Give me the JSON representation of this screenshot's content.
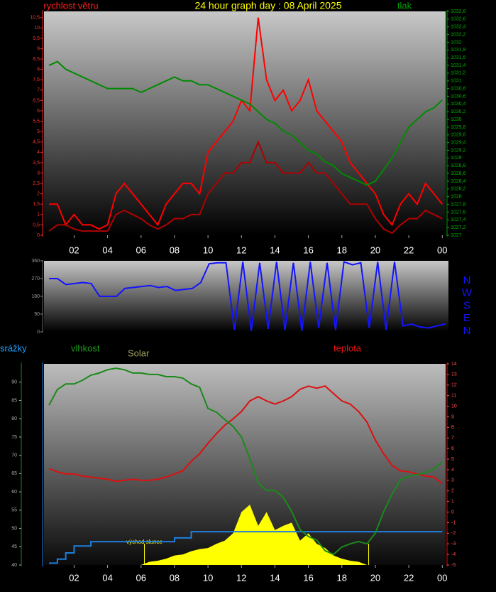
{
  "chart_data": [
    {
      "type": "line",
      "title": "24 hour graph day : 08 April 2025",
      "ylabel": "rychlost větru",
      "y2label": "tlak",
      "x": [
        0.5,
        1,
        1.5,
        2,
        2.5,
        3,
        3.5,
        4,
        4.5,
        5,
        5.5,
        6,
        6.5,
        7,
        7.5,
        8,
        8.5,
        9,
        9.5,
        10,
        10.5,
        11,
        11.5,
        12,
        12.5,
        13,
        13.5,
        14,
        14.5,
        15,
        15.5,
        16,
        16.5,
        17,
        17.5,
        18,
        18.5,
        19,
        19.5,
        20,
        20.5,
        21,
        21.5,
        22,
        22.5,
        23,
        23.5,
        24
      ],
      "xlim": [
        0.2,
        24.2
      ],
      "xticks": [
        {
          "value": 2,
          "label": "02"
        },
        {
          "value": 4,
          "label": "04"
        },
        {
          "value": 6,
          "label": "06"
        },
        {
          "value": 8,
          "label": "08"
        },
        10,
        12,
        14,
        16,
        18,
        20,
        22,
        {
          "value": 24,
          "label": "00"
        }
      ],
      "ylim": [
        0,
        10.8
      ],
      "yticks": [
        0,
        {
          "value": 0.5,
          "label": "0,5"
        },
        1,
        {
          "value": 1.5,
          "label": "1,5"
        },
        2,
        {
          "value": 2.5,
          "label": "2,5"
        },
        3,
        {
          "value": 3.5,
          "label": "3,5"
        },
        4,
        {
          "value": 4.5,
          "label": "4,5"
        },
        5,
        {
          "value": 5.5,
          "label": "5,5"
        },
        6,
        {
          "value": 6.5,
          "label": "6,5"
        },
        7,
        {
          "value": 7.5,
          "label": "7,5"
        },
        8,
        {
          "value": 8.5,
          "label": "8,5"
        },
        9,
        {
          "value": 9.5,
          "label": "9,5"
        },
        10,
        {
          "value": 10.5,
          "label": "10,5"
        }
      ],
      "y2lim": [
        1027,
        1032.8
      ],
      "y2ticks": [
        1027,
        {
          "value": 1027.2,
          "label": "1027,2"
        },
        {
          "value": 1027.4,
          "label": "1027,4"
        },
        {
          "value": 1027.6,
          "label": "1027,6"
        },
        {
          "value": 1027.8,
          "label": "1027,8"
        },
        1028,
        {
          "value": 1028.2,
          "label": "1028,2"
        },
        {
          "value": 1028.4,
          "label": "1028,4"
        },
        {
          "value": 1028.6,
          "label": "1028,6"
        },
        {
          "value": 1028.8,
          "label": "1028,8"
        },
        1029,
        {
          "value": 1029.2,
          "label": "1029,2"
        },
        {
          "value": 1029.4,
          "label": "1029,4"
        },
        {
          "value": 1029.6,
          "label": "1029,6"
        },
        {
          "value": 1029.8,
          "label": "1029,8"
        },
        1030,
        {
          "value": 1030.2,
          "label": "1030,2"
        },
        {
          "value": 1030.4,
          "label": "1030,4"
        },
        {
          "value": 1030.6,
          "label": "1030,6"
        },
        {
          "value": 1030.8,
          "label": "1030,8"
        },
        1031,
        {
          "value": 1031.2,
          "label": "1031,2"
        },
        {
          "value": 1031.4,
          "label": "1031,4"
        },
        {
          "value": 1031.6,
          "label": "1031,6"
        },
        {
          "value": 1031.8,
          "label": "1031,8"
        },
        1032,
        {
          "value": 1032.2,
          "label": "1032,2"
        },
        {
          "value": 1032.4,
          "label": "1032,4"
        },
        {
          "value": 1032.6,
          "label": "1032,6"
        },
        {
          "value": 1032.8,
          "label": "1032,8"
        }
      ],
      "series": [
        {
          "color": "#ff0000",
          "values": [
            1.5,
            1.5,
            0.5,
            1.0,
            0.5,
            0.5,
            0.3,
            0.5,
            2.0,
            2.5,
            2.0,
            1.5,
            1.0,
            0.5,
            1.5,
            2.0,
            2.5,
            2.5,
            2.0,
            4.0,
            4.5,
            5.0,
            5.5,
            6.5,
            6.0,
            10.5,
            7.5,
            6.5,
            7.0,
            6.0,
            6.5,
            7.5,
            6.0,
            5.5,
            5.0,
            4.5,
            3.5,
            3.0,
            2.5,
            2.0,
            1.0,
            0.5,
            1.5,
            2.0,
            1.5,
            2.5,
            2.0,
            1.5
          ]
        },
        {
          "color": "#b00000",
          "values": [
            0.2,
            0.5,
            0.5,
            0.3,
            0.2,
            0.2,
            0.2,
            0.2,
            1.0,
            1.2,
            1.0,
            0.8,
            0.5,
            0.3,
            0.5,
            0.8,
            0.8,
            1.0,
            1.0,
            2.0,
            2.5,
            3.0,
            3.0,
            3.5,
            3.5,
            4.5,
            3.5,
            3.5,
            3.0,
            3.0,
            3.0,
            3.5,
            3.0,
            3.0,
            2.5,
            2.0,
            1.5,
            1.5,
            1.5,
            0.8,
            0.3,
            0.1,
            0.5,
            0.8,
            0.8,
            1.2,
            1.0,
            0.8
          ]
        },
        {
          "color": "#008a00",
          "axis": "y2",
          "values": [
            1031.4,
            1031.5,
            1031.3,
            1031.2,
            1031.1,
            1031.0,
            1030.9,
            1030.8,
            1030.8,
            1030.8,
            1030.8,
            1030.7,
            1030.8,
            1030.9,
            1031.0,
            1031.1,
            1031.0,
            1031.0,
            1030.9,
            1030.9,
            1030.8,
            1030.7,
            1030.6,
            1030.5,
            1030.4,
            1030.2,
            1030.0,
            1029.9,
            1029.7,
            1029.6,
            1029.4,
            1029.2,
            1029.1,
            1028.9,
            1028.8,
            1028.6,
            1028.5,
            1028.4,
            1028.3,
            1028.4,
            1028.7,
            1029.0,
            1029.4,
            1029.8,
            1030.0,
            1030.2,
            1030.3,
            1030.5
          ]
        }
      ]
    },
    {
      "type": "line",
      "x": [
        0.5,
        1,
        1.5,
        2,
        2.5,
        3,
        3.5,
        4,
        4.5,
        5,
        5.5,
        6,
        6.5,
        7,
        7.5,
        8,
        8.5,
        9,
        9.5,
        10,
        10.5,
        11,
        11.5,
        12,
        12.5,
        13,
        13.5,
        14,
        14.5,
        15,
        15.5,
        16,
        16.5,
        17,
        17.5,
        18,
        18.5,
        19,
        19.5,
        20,
        20.5,
        21,
        21.5,
        22,
        22.5,
        23,
        23.5,
        24
      ],
      "xlim": [
        0.2,
        24.2
      ],
      "ylim": [
        0,
        360
      ],
      "yticks": [
        0,
        90,
        180,
        270,
        360
      ],
      "direction_labels": [
        "N",
        "W",
        "S",
        "E",
        "N"
      ],
      "series": [
        {
          "color": "#1414ff",
          "values": [
            270,
            270,
            240,
            245,
            250,
            245,
            180,
            180,
            180,
            220,
            225,
            230,
            235,
            225,
            230,
            210,
            215,
            220,
            250,
            345,
            350,
            350,
            10,
            355,
            5,
            350,
            15,
            355,
            10,
            350,
            5,
            355,
            20,
            350,
            10,
            355,
            340,
            350,
            20,
            355,
            10,
            355,
            30,
            40,
            25,
            20,
            30,
            40
          ]
        }
      ]
    },
    {
      "type": "line",
      "ylabel": "vlhkost",
      "y2label": "teplota",
      "y3label": "srážky",
      "solar_label": "Solar",
      "x": [
        0.5,
        1,
        1.5,
        2,
        2.5,
        3,
        3.5,
        4,
        4.5,
        5,
        5.5,
        6,
        6.5,
        7,
        7.5,
        8,
        8.5,
        9,
        9.5,
        10,
        10.5,
        11,
        11.5,
        12,
        12.5,
        13,
        13.5,
        14,
        14.5,
        15,
        15.5,
        16,
        16.5,
        17,
        17.5,
        18,
        18.5,
        19,
        19.5,
        20,
        20.5,
        21,
        21.5,
        22,
        22.5,
        23,
        23.5,
        24
      ],
      "xlim": [
        0.2,
        24.2
      ],
      "xticks": [
        {
          "value": 2,
          "label": "02"
        },
        {
          "value": 4,
          "label": "04"
        },
        {
          "value": 6,
          "label": "06"
        },
        {
          "value": 8,
          "label": "08"
        },
        10,
        12,
        14,
        16,
        18,
        20,
        22,
        {
          "value": 24,
          "label": "00"
        }
      ],
      "ylim": [
        40,
        95
      ],
      "yticks": [
        40,
        45,
        50,
        55,
        60,
        65,
        70,
        75,
        80,
        85,
        90
      ],
      "y2lim": [
        -5,
        14
      ],
      "y2ticks": [
        -5,
        -4,
        -3,
        -2,
        -1,
        0,
        1,
        2,
        3,
        4,
        5,
        6,
        7,
        8,
        9,
        10,
        11,
        12,
        13,
        14
      ],
      "annotations": [
        {
          "x": 6.2,
          "text": "východ slunce"
        },
        {
          "x": 19.6
        }
      ],
      "series": [
        {
          "color": "#ffff00",
          "axis": "y2",
          "style": "area",
          "values": [
            -5,
            -5,
            -5,
            -5,
            -5,
            -5,
            -5,
            -5,
            -5,
            -5,
            -5,
            -5,
            -4.7,
            -4.6,
            -4.4,
            -4.1,
            -4.0,
            -3.7,
            -3.5,
            -3.4,
            -3.0,
            -2.7,
            -2.0,
            0.0,
            0.7,
            -1.3,
            0.0,
            -1.7,
            -1.3,
            -1.0,
            -2.7,
            -2.0,
            -3.0,
            -3.4,
            -4.1,
            -4.4,
            -4.6,
            -4.7,
            -5,
            -5,
            -5,
            -5,
            -5,
            -5,
            -5,
            -5,
            -5,
            -5
          ]
        },
        {
          "color": "#1e7fe0",
          "style": "step",
          "values": [
            40.5,
            41.6,
            43.3,
            45.2,
            45.2,
            46.4,
            46.4,
            46.4,
            46.4,
            46.4,
            46.4,
            46.4,
            46.4,
            46.4,
            46.4,
            47.4,
            47.4,
            49.1,
            49.1,
            49.1,
            49.1,
            49.1,
            49.1,
            49.1,
            49.1,
            49.1,
            49.1,
            49.1,
            49.1,
            49.1,
            49.1,
            49.1,
            49.1,
            49.1,
            49.1,
            49.1,
            49.1,
            49.1,
            49.1,
            49.1,
            49.1,
            49.1,
            49.1,
            49.1,
            49.1,
            49.1,
            49.1,
            49.1
          ]
        },
        {
          "color": "#dd1010",
          "axis": "y2",
          "values": [
            4.1,
            3.8,
            3.6,
            3.6,
            3.4,
            3.3,
            3.2,
            3.1,
            2.9,
            3.0,
            3.1,
            3.0,
            3.0,
            3.1,
            3.3,
            3.6,
            3.9,
            4.8,
            5.5,
            6.5,
            7.4,
            8.2,
            8.8,
            9.5,
            10.5,
            10.9,
            10.5,
            10.2,
            10.5,
            10.9,
            11.6,
            11.9,
            11.7,
            11.9,
            11.2,
            10.5,
            10.2,
            9.5,
            8.5,
            6.8,
            5.5,
            4.4,
            3.9,
            3.8,
            3.6,
            3.4,
            3.3,
            2.7
          ]
        },
        {
          "color": "#1a8a1a",
          "values": [
            83.7,
            88,
            89.5,
            89.5,
            90.5,
            91.9,
            92.5,
            93.4,
            93.8,
            93.4,
            92.5,
            92.5,
            92.1,
            92.1,
            91.5,
            91.5,
            91.1,
            89.5,
            88.6,
            82.8,
            81.8,
            79.8,
            77.9,
            75,
            69.1,
            62.3,
            60.4,
            60.4,
            58.5,
            54.6,
            49.7,
            47.8,
            46.8,
            43.9,
            42.9,
            44.9,
            45.8,
            46.4,
            45.8,
            48.7,
            54.6,
            59.4,
            63.3,
            64.3,
            64.7,
            65.3,
            66.2,
            68.2
          ]
        }
      ]
    }
  ]
}
